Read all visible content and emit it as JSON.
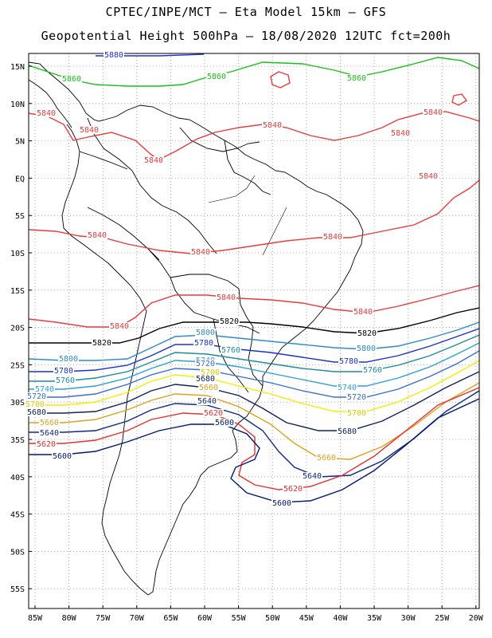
{
  "header": {
    "line1": "CPTEC/INPE/MCT –  Eta Model 15km – GFS",
    "line2": "Geopotential Height 500hPa – 18/08/2020 12UTC fct=200h"
  },
  "axes": {
    "lon_labels": [
      "85W",
      "80W",
      "75W",
      "70W",
      "65W",
      "60W",
      "55W",
      "50W",
      "45W",
      "40W",
      "35W",
      "30W",
      "25W",
      "20W"
    ],
    "lat_labels": [
      "15N",
      "10N",
      "5N",
      "EQ",
      "5S",
      "10S",
      "15S",
      "20S",
      "25S",
      "30S",
      "35S",
      "40S",
      "45S",
      "50S",
      "55S"
    ]
  },
  "map_data": {
    "variable": "Geopotential Height 500hPa",
    "contours": [
      {
        "level": "5860",
        "color": "#18c018"
      },
      {
        "level": "5840",
        "color": "#e83c3c"
      },
      {
        "level": "5820",
        "color": "#000000"
      },
      {
        "level": "5800",
        "color": "#2c8cc8"
      },
      {
        "level": "5780",
        "color": "#1c30d0"
      },
      {
        "level": "5760",
        "color": "#1c8ca0"
      },
      {
        "level": "5740",
        "color": "#2ca0d8"
      },
      {
        "level": "5720",
        "color": "#3c6cd0"
      },
      {
        "level": "5700",
        "color": "#f0f000"
      },
      {
        "level": "5680",
        "color": "#102060"
      },
      {
        "level": "5660",
        "color": "#e0a020"
      },
      {
        "level": "5640",
        "color": "#102888"
      },
      {
        "level": "5620",
        "color": "#e83030"
      },
      {
        "level": "5600",
        "color": "#001870"
      }
    ],
    "labels": [
      {
        "text": "5880",
        "color": "#1c30d0"
      },
      {
        "text": "5860",
        "color": "#18c018"
      },
      {
        "text": "5860",
        "color": "#18c018"
      },
      {
        "text": "5860",
        "color": "#18c018"
      },
      {
        "text": "5840",
        "color": "#e83c3c"
      },
      {
        "text": "5840",
        "color": "#e83c3c"
      },
      {
        "text": "5840",
        "color": "#e83c3c"
      },
      {
        "text": "5840",
        "color": "#e83c3c"
      },
      {
        "text": "5840",
        "color": "#e83c3c"
      },
      {
        "text": "5840",
        "color": "#e83c3c"
      },
      {
        "text": "5840",
        "color": "#e83c3c"
      },
      {
        "text": "5840",
        "color": "#e83c3c"
      },
      {
        "text": "5840",
        "color": "#e83c3c"
      },
      {
        "text": "5840",
        "color": "#e83c3c"
      },
      {
        "text": "5840",
        "color": "#e83c3c"
      },
      {
        "text": "5840",
        "color": "#e83c3c"
      },
      {
        "text": "5840",
        "color": "#e83c3c"
      },
      {
        "text": "5820",
        "color": "#000000"
      },
      {
        "text": "5820",
        "color": "#000000"
      },
      {
        "text": "5820",
        "color": "#000000"
      },
      {
        "text": "5800",
        "color": "#2c8cc8"
      },
      {
        "text": "5800",
        "color": "#2c8cc8"
      },
      {
        "text": "5800",
        "color": "#2c8cc8"
      },
      {
        "text": "5780",
        "color": "#1c30d0"
      },
      {
        "text": "5780",
        "color": "#1c30d0"
      },
      {
        "text": "5780",
        "color": "#1c30d0"
      },
      {
        "text": "5760",
        "color": "#1c8ca0"
      },
      {
        "text": "5760",
        "color": "#1c8ca0"
      },
      {
        "text": "5760",
        "color": "#1c8ca0"
      },
      {
        "text": "5740",
        "color": "#2ca0d8"
      },
      {
        "text": "5740",
        "color": "#2ca0d8"
      },
      {
        "text": "5740",
        "color": "#2ca0d8"
      },
      {
        "text": "5720",
        "color": "#3c6cd0"
      },
      {
        "text": "5720",
        "color": "#3c6cd0"
      },
      {
        "text": "5720",
        "color": "#3c6cd0"
      },
      {
        "text": "5700",
        "color": "#d8c800"
      },
      {
        "text": "5700",
        "color": "#d8c800"
      },
      {
        "text": "5700",
        "color": "#d8c800"
      },
      {
        "text": "5680",
        "color": "#102060"
      },
      {
        "text": "5680",
        "color": "#102060"
      },
      {
        "text": "5680",
        "color": "#102060"
      },
      {
        "text": "5660",
        "color": "#e0a020"
      },
      {
        "text": "5660",
        "color": "#e0a020"
      },
      {
        "text": "5660",
        "color": "#e0a020"
      },
      {
        "text": "5640",
        "color": "#102888"
      },
      {
        "text": "5640",
        "color": "#102888"
      },
      {
        "text": "5640",
        "color": "#102888"
      },
      {
        "text": "5620",
        "color": "#e83030"
      },
      {
        "text": "5620",
        "color": "#e83030"
      },
      {
        "text": "5620",
        "color": "#e83030"
      },
      {
        "text": "5600",
        "color": "#001870"
      },
      {
        "text": "5600",
        "color": "#001870"
      },
      {
        "text": "5600",
        "color": "#001870"
      }
    ]
  }
}
